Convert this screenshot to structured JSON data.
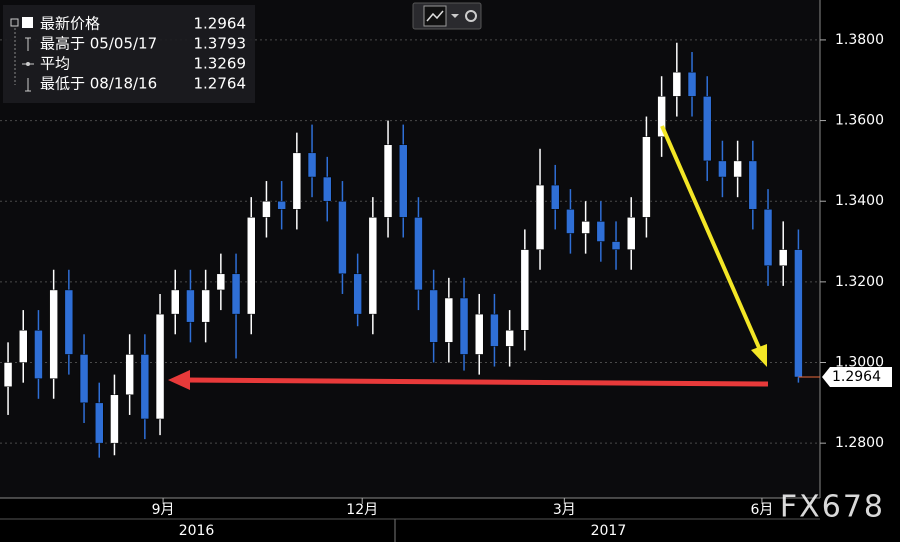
{
  "chart_data": {
    "type": "candlestick",
    "open": [
      1.294,
      1.3,
      1.308,
      1.296,
      1.318,
      1.302,
      1.29,
      1.28,
      1.292,
      1.302,
      1.286,
      1.312,
      1.318,
      1.31,
      1.318,
      1.322,
      1.312,
      1.336,
      1.34,
      1.338,
      1.352,
      1.346,
      1.34,
      1.322,
      1.312,
      1.336,
      1.354,
      1.336,
      1.318,
      1.305,
      1.316,
      1.302,
      1.312,
      1.304,
      1.308,
      1.328,
      1.344,
      1.338,
      1.332,
      1.335,
      1.33,
      1.328,
      1.336,
      1.356,
      1.366,
      1.372,
      1.366,
      1.35,
      1.346,
      1.35,
      1.338,
      1.324,
      1.328
    ],
    "high": [
      1.305,
      1.313,
      1.313,
      1.323,
      1.323,
      1.307,
      1.295,
      1.297,
      1.307,
      1.307,
      1.317,
      1.323,
      1.323,
      1.323,
      1.327,
      1.327,
      1.341,
      1.345,
      1.345,
      1.357,
      1.359,
      1.351,
      1.345,
      1.327,
      1.341,
      1.36,
      1.359,
      1.341,
      1.323,
      1.321,
      1.321,
      1.317,
      1.317,
      1.313,
      1.333,
      1.353,
      1.349,
      1.343,
      1.34,
      1.34,
      1.335,
      1.341,
      1.361,
      1.371,
      1.3793,
      1.377,
      1.371,
      1.355,
      1.355,
      1.355,
      1.343,
      1.335,
      1.333
    ],
    "low": [
      1.287,
      1.295,
      1.291,
      1.291,
      1.297,
      1.285,
      1.2764,
      1.277,
      1.287,
      1.281,
      1.282,
      1.307,
      1.305,
      1.305,
      1.313,
      1.301,
      1.307,
      1.331,
      1.333,
      1.333,
      1.341,
      1.335,
      1.317,
      1.309,
      1.307,
      1.331,
      1.331,
      1.313,
      1.3,
      1.3,
      1.298,
      1.297,
      1.299,
      1.299,
      1.303,
      1.323,
      1.333,
      1.327,
      1.327,
      1.325,
      1.323,
      1.323,
      1.331,
      1.351,
      1.361,
      1.361,
      1.345,
      1.341,
      1.341,
      1.333,
      1.319,
      1.319,
      1.295
    ],
    "close": [
      1.3,
      1.308,
      1.296,
      1.318,
      1.302,
      1.29,
      1.28,
      1.292,
      1.302,
      1.286,
      1.312,
      1.318,
      1.31,
      1.318,
      1.322,
      1.312,
      1.336,
      1.34,
      1.338,
      1.352,
      1.346,
      1.34,
      1.322,
      1.312,
      1.336,
      1.354,
      1.336,
      1.318,
      1.305,
      1.316,
      1.302,
      1.312,
      1.304,
      1.308,
      1.328,
      1.344,
      1.338,
      1.332,
      1.335,
      1.33,
      1.328,
      1.336,
      1.356,
      1.366,
      1.372,
      1.366,
      1.35,
      1.346,
      1.35,
      1.338,
      1.324,
      1.328,
      1.2964
    ],
    "up_color": "#ffffff",
    "down_color": "#2f6fd6",
    "xlim": [
      -0.53,
      53.42
    ],
    "xticks": [
      {
        "value": 10.2,
        "label": "9月"
      },
      {
        "value": 23.3,
        "label": "12月"
      },
      {
        "value": 36.6,
        "label": "3月"
      },
      {
        "value": 49.6,
        "label": "6月"
      }
    ],
    "x_year_labels": [
      {
        "value": 12.4,
        "label": "2016"
      },
      {
        "value": 39.5,
        "label": "2017"
      }
    ],
    "ylim": [
      1.2664,
      1.3899
    ],
    "yticks": [
      {
        "value": 1.28,
        "label": "1.2800"
      },
      {
        "value": 1.3,
        "label": "1.3000"
      },
      {
        "value": 1.32,
        "label": "1.3200"
      },
      {
        "value": 1.34,
        "label": "1.3400"
      },
      {
        "value": 1.36,
        "label": "1.3600"
      },
      {
        "value": 1.38,
        "label": "1.3800"
      }
    ],
    "grid": true,
    "legend": [
      {
        "label": "最新价格",
        "value": 1.2964
      },
      {
        "label": "最高于 05/05/17",
        "value": 1.3793
      },
      {
        "label": "平均",
        "value": 1.3269
      },
      {
        "label": "最低于 08/18/16",
        "value": 1.2764
      }
    ],
    "watermark": "FX678"
  }
}
